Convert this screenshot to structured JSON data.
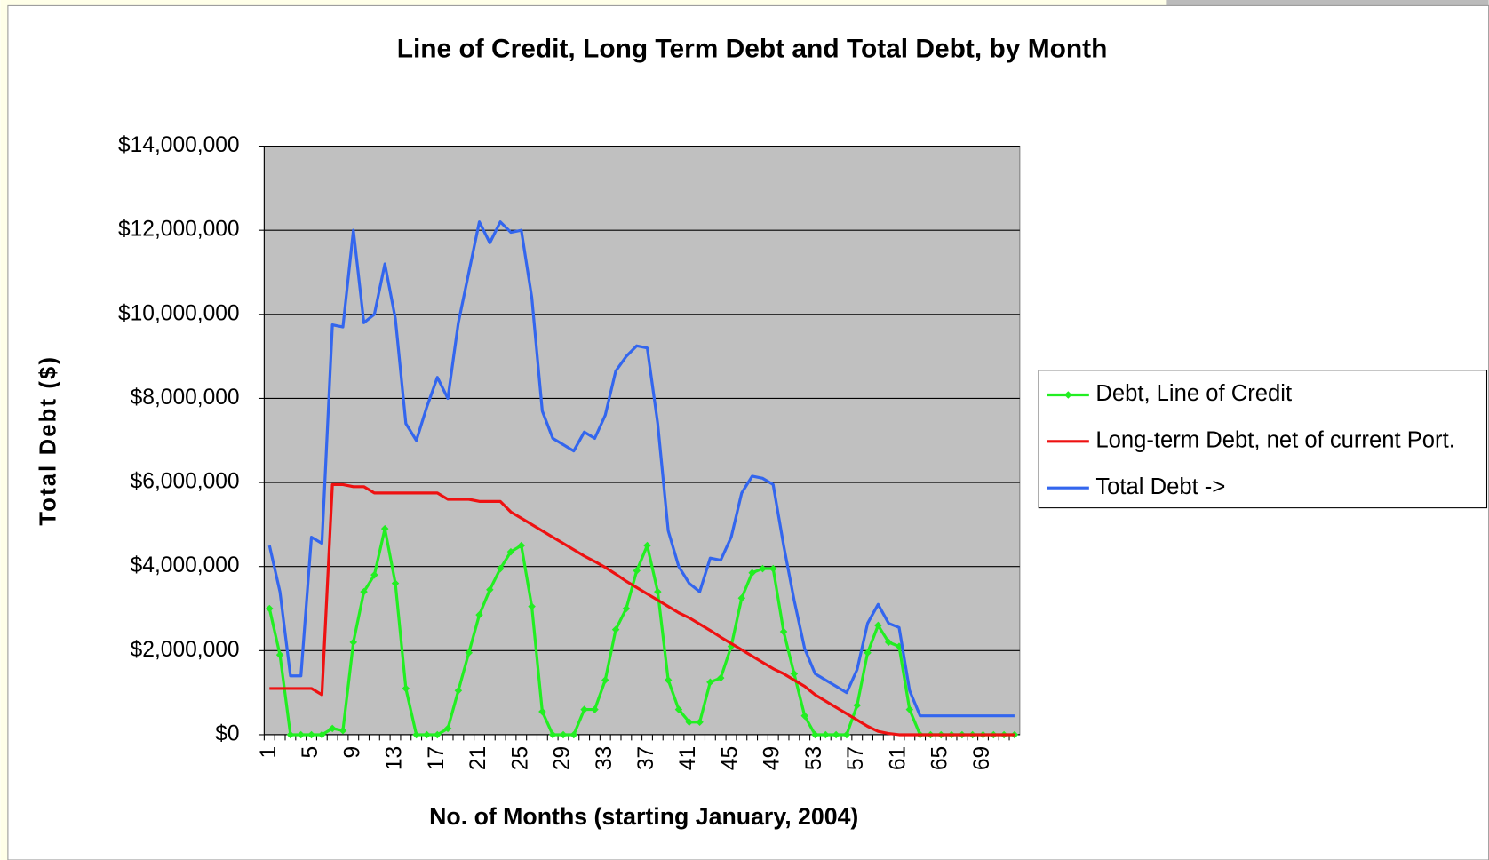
{
  "chart_data": {
    "type": "line",
    "title": "Line of Credit, Long Term Debt and Total Debt, by Month",
    "x_label": "No. of Months (starting January, 2004)",
    "y_label": "Total Debt ($)",
    "categories": [
      "1",
      null,
      null,
      null,
      "5",
      null,
      null,
      null,
      "9",
      null,
      null,
      null,
      "13",
      null,
      null,
      null,
      "17",
      null,
      null,
      null,
      "21",
      null,
      null,
      null,
      "25",
      null,
      null,
      null,
      "29",
      null,
      null,
      null,
      "33",
      null,
      null,
      null,
      "37",
      null,
      null,
      null,
      "41",
      null,
      null,
      null,
      "45",
      null,
      null,
      null,
      "49",
      null,
      null,
      null,
      "53",
      null,
      null,
      null,
      "57",
      null,
      null,
      null,
      "61",
      null,
      null,
      null,
      "65",
      null,
      null,
      null,
      "69",
      null,
      null,
      null
    ],
    "series": [
      {
        "name": "Debt, Line of Credit",
        "color": "#22ee22",
        "markers": true,
        "values": [
          3000000,
          1900000,
          0,
          0,
          0,
          0,
          150000,
          100000,
          2200000,
          3400000,
          3800000,
          4900000,
          3600000,
          1100000,
          0,
          0,
          0,
          150000,
          1050000,
          1950000,
          2850000,
          3450000,
          3950000,
          4350000,
          4500000,
          3050000,
          550000,
          0,
          0,
          0,
          600000,
          600000,
          1300000,
          2500000,
          3000000,
          3900000,
          4500000,
          3400000,
          1300000,
          600000,
          300000,
          300000,
          1250000,
          1350000,
          2100000,
          3250000,
          3850000,
          3950000,
          3950000,
          2450000,
          1450000,
          450000,
          0,
          0,
          0,
          0,
          700000,
          1950000,
          2600000,
          2200000,
          2100000,
          600000,
          0,
          0,
          0,
          0,
          0,
          0,
          0,
          0,
          0,
          0
        ]
      },
      {
        "name": "Long-term Debt, net of current Port.",
        "color": "#ee1111",
        "markers": false,
        "values": [
          1100000,
          1100000,
          1100000,
          1100000,
          1100000,
          950000,
          5950000,
          5950000,
          5900000,
          5900000,
          5750000,
          5750000,
          5750000,
          5750000,
          5750000,
          5750000,
          5750000,
          5600000,
          5600000,
          5600000,
          5550000,
          5550000,
          5550000,
          5300000,
          5150000,
          5000000,
          4850000,
          4700000,
          4550000,
          4400000,
          4250000,
          4120000,
          3980000,
          3820000,
          3650000,
          3500000,
          3350000,
          3200000,
          3050000,
          2900000,
          2780000,
          2630000,
          2480000,
          2320000,
          2170000,
          2020000,
          1870000,
          1720000,
          1570000,
          1450000,
          1300000,
          1150000,
          950000,
          800000,
          650000,
          500000,
          350000,
          200000,
          80000,
          30000,
          0,
          0,
          0,
          0,
          0,
          0,
          0,
          0,
          0,
          0,
          0,
          0
        ]
      },
      {
        "name": "Total Debt ->",
        "color": "#3366ee",
        "markers": false,
        "values": [
          4500000,
          3400000,
          1400000,
          1400000,
          4700000,
          4550000,
          9750000,
          9700000,
          12000000,
          9800000,
          10000000,
          11200000,
          9900000,
          7400000,
          7000000,
          7800000,
          8500000,
          8000000,
          9800000,
          11000000,
          12200000,
          11700000,
          12200000,
          11950000,
          12000000,
          10400000,
          7700000,
          7050000,
          6900000,
          6750000,
          7200000,
          7050000,
          7600000,
          8650000,
          9000000,
          9250000,
          9200000,
          7400000,
          4850000,
          4000000,
          3600000,
          3400000,
          4200000,
          4150000,
          4700000,
          5750000,
          6150000,
          6100000,
          5950000,
          4500000,
          3200000,
          2050000,
          1450000,
          1300000,
          1150000,
          1000000,
          1550000,
          2650000,
          3100000,
          2650000,
          2550000,
          1050000,
          450000,
          450000,
          450000,
          450000,
          450000,
          450000,
          450000,
          450000,
          450000,
          450000
        ]
      }
    ],
    "ylim": [
      0,
      14000000
    ],
    "yticks": [
      {
        "value": 0,
        "label": "$0"
      },
      {
        "value": 2000000,
        "label": "$2,000,000"
      },
      {
        "value": 4000000,
        "label": "$4,000,000"
      },
      {
        "value": 6000000,
        "label": "$6,000,000"
      },
      {
        "value": 8000000,
        "label": "$8,000,000"
      },
      {
        "value": 10000000,
        "label": "$10,000,000"
      },
      {
        "value": 12000000,
        "label": "$12,000,000"
      },
      {
        "value": 14000000,
        "label": "$14,000,000"
      }
    ],
    "grid": true,
    "legend": "right",
    "plot_background": "#c0c0c0"
  }
}
